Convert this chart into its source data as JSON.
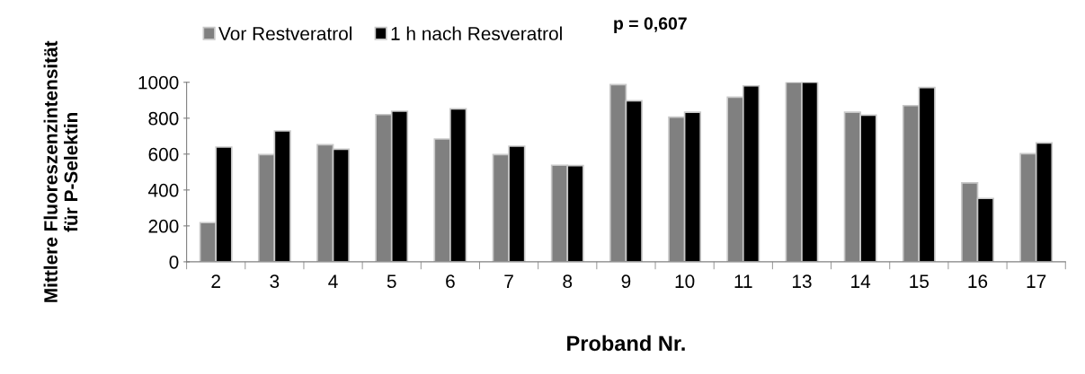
{
  "chart_data": {
    "type": "bar",
    "categories": [
      "2",
      "3",
      "4",
      "5",
      "6",
      "7",
      "8",
      "9",
      "10",
      "11",
      "13",
      "14",
      "15",
      "16",
      "17"
    ],
    "series": [
      {
        "name": "Vor Restveratrol",
        "color": "#808080",
        "values": [
          218,
          597,
          652,
          820,
          684,
          597,
          538,
          987,
          806,
          917,
          1000,
          833,
          870,
          440,
          602
        ]
      },
      {
        "name": "1 h nach Resveratrol",
        "color": "#000000",
        "values": [
          639,
          729,
          627,
          839,
          852,
          644,
          536,
          897,
          833,
          980,
          1000,
          817,
          971,
          353,
          662
        ]
      }
    ],
    "xlabel": "Proband Nr.",
    "ylabel": "Mittlere Fluoreszenzintensität\nfür P-Selektin",
    "annotations": [
      "p = 0,607"
    ],
    "ylim": [
      0,
      1000
    ],
    "yticks": [
      0,
      200,
      400,
      600,
      800,
      1000
    ],
    "grid": false,
    "legend": "top left"
  }
}
